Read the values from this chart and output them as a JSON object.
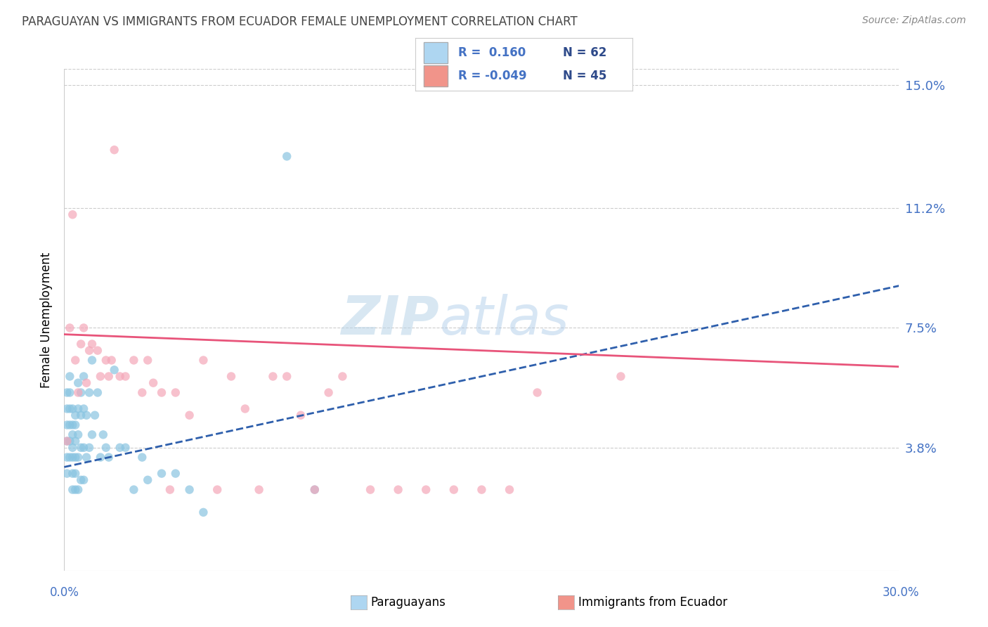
{
  "title": "PARAGUAYAN VS IMMIGRANTS FROM ECUADOR FEMALE UNEMPLOYMENT CORRELATION CHART",
  "source_text": "Source: ZipAtlas.com",
  "ylabel": "Female Unemployment",
  "yticks": [
    0.0,
    0.038,
    0.075,
    0.112,
    0.15
  ],
  "ytick_labels": [
    "",
    "3.8%",
    "7.5%",
    "11.2%",
    "15.0%"
  ],
  "xlim": [
    0.0,
    0.3
  ],
  "ylim": [
    0.0,
    0.155
  ],
  "watermark_zip": "ZIP",
  "watermark_atlas": "atlas",
  "para_color": "#89C4E1",
  "ecua_color": "#F4A7B9",
  "para_trend_color": "#2E5FAC",
  "ecua_trend_color": "#E8547A",
  "grid_color": "#CCCCCC",
  "title_color": "#444444",
  "axis_label_color": "#4472C4",
  "legend_para_color": "#AED6F1",
  "legend_ecua_color": "#F1948A",
  "para_trend_x0": 0.0,
  "para_trend_x1": 0.3,
  "para_trend_y0": 0.032,
  "para_trend_y1": 0.088,
  "ecua_trend_x0": 0.0,
  "ecua_trend_x1": 0.3,
  "ecua_trend_y0": 0.073,
  "ecua_trend_y1": 0.063,
  "paraguayan_x": [
    0.001,
    0.001,
    0.001,
    0.001,
    0.001,
    0.001,
    0.002,
    0.002,
    0.002,
    0.002,
    0.002,
    0.002,
    0.003,
    0.003,
    0.003,
    0.003,
    0.003,
    0.003,
    0.003,
    0.004,
    0.004,
    0.004,
    0.004,
    0.004,
    0.004,
    0.005,
    0.005,
    0.005,
    0.005,
    0.005,
    0.006,
    0.006,
    0.006,
    0.006,
    0.007,
    0.007,
    0.007,
    0.007,
    0.008,
    0.008,
    0.009,
    0.009,
    0.01,
    0.01,
    0.011,
    0.012,
    0.013,
    0.014,
    0.015,
    0.016,
    0.018,
    0.02,
    0.022,
    0.025,
    0.028,
    0.03,
    0.035,
    0.04,
    0.045,
    0.05,
    0.08,
    0.09
  ],
  "paraguayan_y": [
    0.055,
    0.05,
    0.045,
    0.04,
    0.035,
    0.03,
    0.06,
    0.055,
    0.05,
    0.045,
    0.04,
    0.035,
    0.05,
    0.045,
    0.042,
    0.038,
    0.035,
    0.03,
    0.025,
    0.048,
    0.045,
    0.04,
    0.035,
    0.03,
    0.025,
    0.058,
    0.05,
    0.042,
    0.035,
    0.025,
    0.055,
    0.048,
    0.038,
    0.028,
    0.06,
    0.05,
    0.038,
    0.028,
    0.048,
    0.035,
    0.055,
    0.038,
    0.065,
    0.042,
    0.048,
    0.055,
    0.035,
    0.042,
    0.038,
    0.035,
    0.062,
    0.038,
    0.038,
    0.025,
    0.035,
    0.028,
    0.03,
    0.03,
    0.025,
    0.018,
    0.128,
    0.025
  ],
  "ecuador_x": [
    0.001,
    0.002,
    0.003,
    0.004,
    0.005,
    0.006,
    0.007,
    0.008,
    0.009,
    0.01,
    0.012,
    0.013,
    0.015,
    0.016,
    0.017,
    0.018,
    0.02,
    0.022,
    0.025,
    0.028,
    0.03,
    0.032,
    0.035,
    0.038,
    0.04,
    0.045,
    0.05,
    0.055,
    0.06,
    0.065,
    0.07,
    0.075,
    0.08,
    0.085,
    0.09,
    0.095,
    0.1,
    0.11,
    0.12,
    0.13,
    0.14,
    0.15,
    0.16,
    0.17,
    0.2
  ],
  "ecuador_y": [
    0.04,
    0.075,
    0.11,
    0.065,
    0.055,
    0.07,
    0.075,
    0.058,
    0.068,
    0.07,
    0.068,
    0.06,
    0.065,
    0.06,
    0.065,
    0.13,
    0.06,
    0.06,
    0.065,
    0.055,
    0.065,
    0.058,
    0.055,
    0.025,
    0.055,
    0.048,
    0.065,
    0.025,
    0.06,
    0.05,
    0.025,
    0.06,
    0.06,
    0.048,
    0.025,
    0.055,
    0.06,
    0.025,
    0.025,
    0.025,
    0.025,
    0.025,
    0.025,
    0.055,
    0.06
  ]
}
